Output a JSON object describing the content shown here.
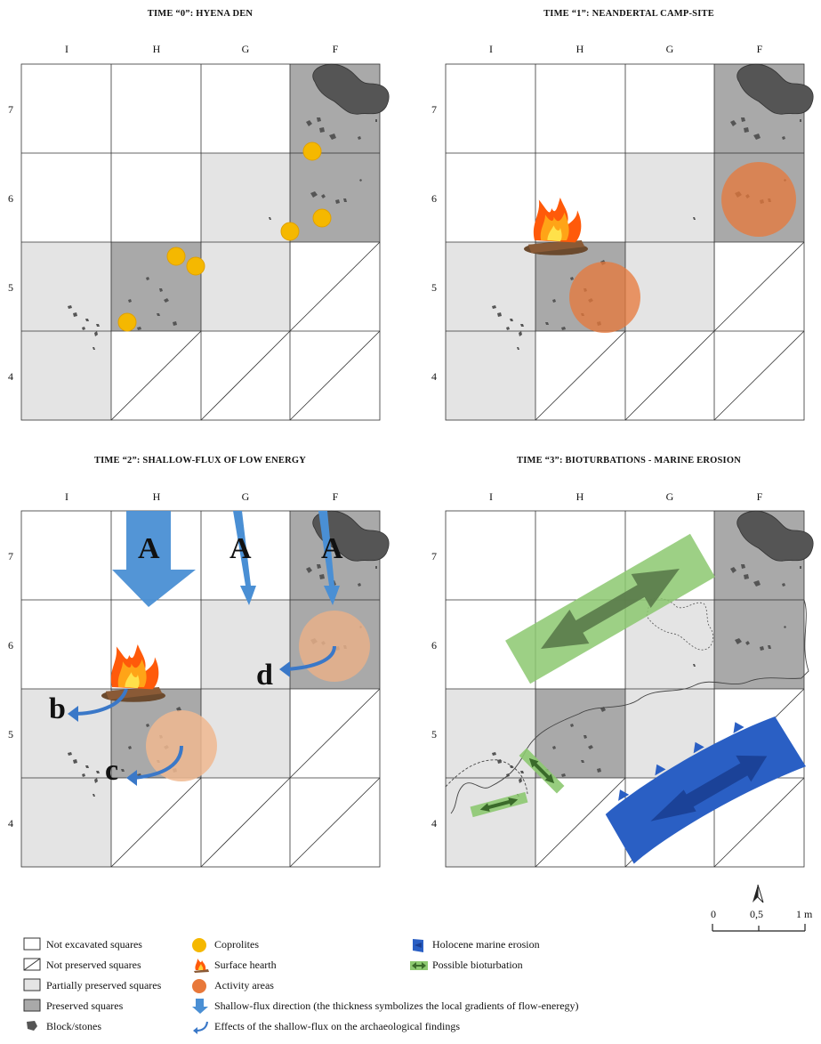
{
  "panels": [
    {
      "title": "TIME “0”: HYENA DEN"
    },
    {
      "title": "TIME “1”: NEANDERTAL CAMP-SITE"
    },
    {
      "title": "TIME “2”: SHALLOW-FLUX OF LOW ENERGY"
    },
    {
      "title": "TIME “3”: BIOTURBATIONS - MARINE EROSION"
    }
  ],
  "columns": [
    "I",
    "H",
    "G",
    "F"
  ],
  "rows": [
    "7",
    "6",
    "5",
    "4"
  ],
  "flux_labels": {
    "a1": "A",
    "a2": "A",
    "a3": "A",
    "b": "b",
    "c": "c",
    "d": "d"
  },
  "legend": {
    "not_excavated": "Not excavated squares",
    "not_preserved": "Not preserved squares",
    "partially_preserved": "Partially preserved squares",
    "preserved": "Preserved squares",
    "block_stones": "Block/stones",
    "coprolites": "Coprolites",
    "surface_hearth": "Surface hearth",
    "activity_areas": "Activity areas",
    "flux_direction": "Shallow-flux direction (the thickness symbolizes the local gradients of flow-eneregy)",
    "flux_effects": "Effects of the shallow-flux on the archaeological findings",
    "marine_erosion": "Holocene marine erosion",
    "bioturbation": "Possible bioturbation"
  },
  "scale": {
    "zero": "0",
    "half": "0,5",
    "one": "1 m"
  },
  "colors": {
    "partial": "#e4e4e4",
    "preserved": "#a9a9a9",
    "stone": "#555555",
    "coprolite": "#f5b800",
    "activity": "#e8783a",
    "flux_blue": "#4a8fd4",
    "marine_blue": "#2a5fc4",
    "bioturbation_green": "#8cc870"
  }
}
